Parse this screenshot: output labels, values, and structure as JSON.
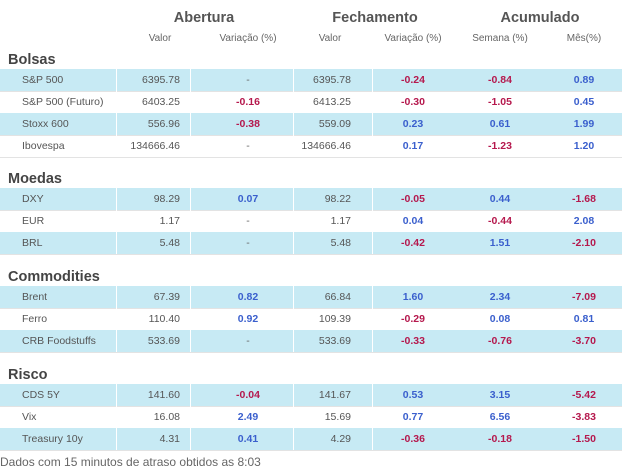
{
  "headers": {
    "groups": [
      "Abertura",
      "Fechamento",
      "Acumulado"
    ],
    "columns": [
      "Valor",
      "Variação (%)",
      "Valor",
      "Variação (%)",
      "Semana (%)",
      "Mês(%)"
    ]
  },
  "sections": [
    {
      "title": "Bolsas",
      "rows": [
        {
          "name": "S&P 500",
          "open_value": "6395.78",
          "open_var": "-",
          "close_value": "6395.78",
          "close_var": "-0.24",
          "week": "-0.84",
          "month": "0.89"
        },
        {
          "name": "S&P 500 (Futuro)",
          "open_value": "6403.25",
          "open_var": "-0.16",
          "close_value": "6413.25",
          "close_var": "-0.30",
          "week": "-1.05",
          "month": "0.45"
        },
        {
          "name": "Stoxx 600",
          "open_value": "556.96",
          "open_var": "-0.38",
          "close_value": "559.09",
          "close_var": "0.23",
          "week": "0.61",
          "month": "1.99"
        },
        {
          "name": "Ibovespa",
          "open_value": "134666.46",
          "open_var": "-",
          "close_value": "134666.46",
          "close_var": "0.17",
          "week": "-1.23",
          "month": "1.20"
        }
      ]
    },
    {
      "title": "Moedas",
      "rows": [
        {
          "name": "DXY",
          "open_value": "98.29",
          "open_var": "0.07",
          "close_value": "98.22",
          "close_var": "-0.05",
          "week": "0.44",
          "month": "-1.68"
        },
        {
          "name": "EUR",
          "open_value": "1.17",
          "open_var": "-",
          "close_value": "1.17",
          "close_var": "0.04",
          "week": "-0.44",
          "month": "2.08"
        },
        {
          "name": "BRL",
          "open_value": "5.48",
          "open_var": "-",
          "close_value": "5.48",
          "close_var": "-0.42",
          "week": "1.51",
          "month": "-2.10"
        }
      ]
    },
    {
      "title": "Commodities",
      "rows": [
        {
          "name": "Brent",
          "open_value": "67.39",
          "open_var": "0.82",
          "close_value": "66.84",
          "close_var": "1.60",
          "week": "2.34",
          "month": "-7.09"
        },
        {
          "name": "Ferro",
          "open_value": "110.40",
          "open_var": "0.92",
          "close_value": "109.39",
          "close_var": "-0.29",
          "week": "0.08",
          "month": "0.81"
        },
        {
          "name": "CRB Foodstuffs",
          "open_value": "533.69",
          "open_var": "-",
          "close_value": "533.69",
          "close_var": "-0.33",
          "week": "-0.76",
          "month": "-3.70"
        }
      ]
    },
    {
      "title": "Risco",
      "rows": [
        {
          "name": "CDS 5Y",
          "open_value": "141.60",
          "open_var": "-0.04",
          "close_value": "141.67",
          "close_var": "0.53",
          "week": "3.15",
          "month": "-5.42"
        },
        {
          "name": "Vix",
          "open_value": "16.08",
          "open_var": "2.49",
          "close_value": "15.69",
          "close_var": "0.77",
          "week": "6.56",
          "month": "-3.83"
        },
        {
          "name": "Treasury 10y",
          "open_value": "4.31",
          "open_var": "0.41",
          "close_value": "4.29",
          "close_var": "-0.36",
          "week": "-0.18",
          "month": "-1.50"
        }
      ]
    }
  ],
  "colors": {
    "positive": "#3a5fcd",
    "negative": "#b5184d",
    "stripe": "#c7eaf4"
  },
  "footer": "Dados com 15 minutos de atraso obtidos as 8:03"
}
